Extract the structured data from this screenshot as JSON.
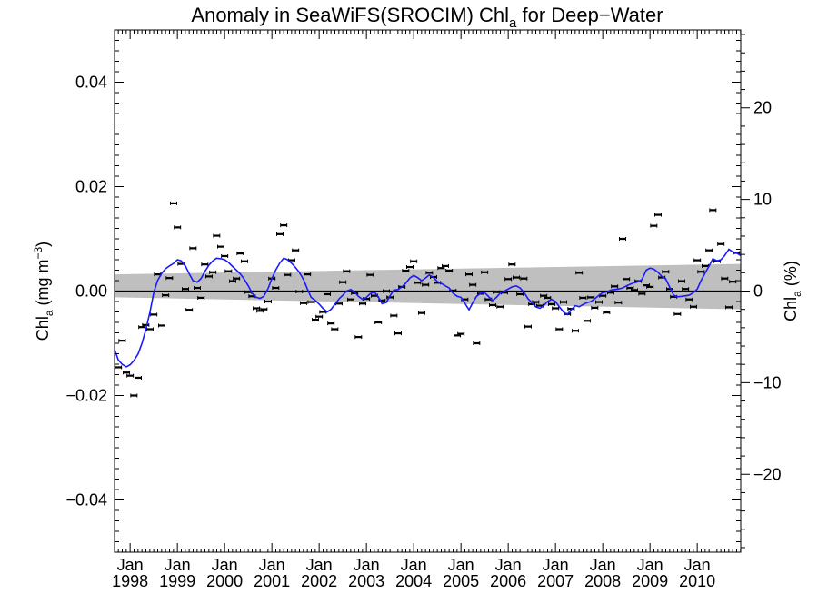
{
  "chart_data": {
    "type": "scatter",
    "title": "Anomaly in SeaWiFS(SROCIM) Chl",
    "title_sub": "a",
    "title_suffix": " for Deep−Water",
    "ylabel": {
      "main": "Chl",
      "sub": "a",
      "units": " (mg m",
      "sup": "−3",
      "close": ")"
    },
    "y2label": {
      "main": "Chl",
      "sub": "a",
      "units": " (%)"
    },
    "ylim": [
      -0.05,
      0.05
    ],
    "y2lim": [
      -28.5,
      28.5
    ],
    "xlim": [
      1997.67,
      2010.92
    ],
    "yticks": [
      {
        "value": 0.04,
        "label": "0.04"
      },
      {
        "value": 0.02,
        "label": "0.02"
      },
      {
        "value": 0.0,
        "label": "0.00"
      },
      {
        "value": -0.02,
        "label": "−0.02"
      },
      {
        "value": -0.04,
        "label": "−0.04"
      }
    ],
    "y2ticks": [
      {
        "value": 20,
        "label": "20"
      },
      {
        "value": 10,
        "label": "10"
      },
      {
        "value": 0,
        "label": "0"
      },
      {
        "value": -10,
        "label": "−10"
      },
      {
        "value": -20,
        "label": "−20"
      }
    ],
    "xticks": [
      {
        "value": 1998,
        "month": "Jan",
        "year": "1998"
      },
      {
        "value": 1999,
        "month": "Jan",
        "year": "1999"
      },
      {
        "value": 2000,
        "month": "Jan",
        "year": "2000"
      },
      {
        "value": 2001,
        "month": "Jan",
        "year": "2001"
      },
      {
        "value": 2002,
        "month": "Jan",
        "year": "2002"
      },
      {
        "value": 2003,
        "month": "Jan",
        "year": "2003"
      },
      {
        "value": 2004,
        "month": "Jan",
        "year": "2004"
      },
      {
        "value": 2005,
        "month": "Jan",
        "year": "2005"
      },
      {
        "value": 2006,
        "month": "Jan",
        "year": "2006"
      },
      {
        "value": 2007,
        "month": "Jan",
        "year": "2007"
      },
      {
        "value": 2008,
        "month": "Jan",
        "year": "2008"
      },
      {
        "value": 2009,
        "month": "Jan",
        "year": "2009"
      },
      {
        "value": 2010,
        "month": "Jan",
        "year": "2010"
      }
    ],
    "series_points": [
      [
        1997.75,
        -0.0146
      ],
      [
        1997.83,
        -0.0095
      ],
      [
        1997.92,
        -0.0156
      ],
      [
        1998.0,
        -0.0162
      ],
      [
        1998.08,
        -0.02
      ],
      [
        1998.17,
        -0.0166
      ],
      [
        1998.25,
        -0.0069
      ],
      [
        1998.33,
        -0.0065
      ],
      [
        1998.42,
        -0.0073
      ],
      [
        1998.5,
        -0.0045
      ],
      [
        1998.58,
        0.0032
      ],
      [
        1998.67,
        -0.0066
      ],
      [
        1998.75,
        -0.0008
      ],
      [
        1998.83,
        0.0025
      ],
      [
        1998.92,
        0.0168
      ],
      [
        1999.0,
        0.0122
      ],
      [
        1999.08,
        0.0052
      ],
      [
        1999.17,
        0.0004
      ],
      [
        1999.25,
        -0.0036
      ],
      [
        1999.33,
        0.0082
      ],
      [
        1999.42,
        0.0006
      ],
      [
        1999.5,
        -0.0013
      ],
      [
        1999.58,
        0.0051
      ],
      [
        1999.67,
        0.0028
      ],
      [
        1999.75,
        0.0036
      ],
      [
        1999.83,
        0.0106
      ],
      [
        1999.92,
        0.0085
      ],
      [
        2000.0,
        0.0067
      ],
      [
        2000.08,
        0.0038
      ],
      [
        2000.17,
        0.0019
      ],
      [
        2000.25,
        0.0024
      ],
      [
        2000.33,
        0.0072
      ],
      [
        2000.42,
        0.0057
      ],
      [
        2000.5,
        -0.0002
      ],
      [
        2000.58,
        -0.001
      ],
      [
        2000.67,
        -0.0033
      ],
      [
        2000.75,
        -0.0038
      ],
      [
        2000.83,
        -0.0035
      ],
      [
        2000.92,
        -0.002
      ],
      [
        2001.0,
        0.0024
      ],
      [
        2001.08,
        0.0006
      ],
      [
        2001.17,
        0.0109
      ],
      [
        2001.25,
        0.0126
      ],
      [
        2001.33,
        0.0031
      ],
      [
        2001.42,
        0.0059
      ],
      [
        2001.5,
        0.0078
      ],
      [
        2001.58,
        -0.0001
      ],
      [
        2001.67,
        -0.0023
      ],
      [
        2001.75,
        0.0032
      ],
      [
        2001.83,
        -0.0021
      ],
      [
        2001.92,
        -0.0055
      ],
      [
        2002.0,
        -0.0049
      ],
      [
        2002.08,
        -0.004
      ],
      [
        2002.17,
        -0.0006
      ],
      [
        2002.25,
        -0.0062
      ],
      [
        2002.33,
        -0.0073
      ],
      [
        2002.42,
        -0.0024
      ],
      [
        2002.5,
        0.0017
      ],
      [
        2002.58,
        0.0038
      ],
      [
        2002.67,
        -0.0016
      ],
      [
        2002.75,
        -0.0004
      ],
      [
        2002.83,
        -0.0088
      ],
      [
        2002.92,
        -0.0024
      ],
      [
        2003.0,
        -0.0015
      ],
      [
        2003.08,
        0.0031
      ],
      [
        2003.17,
        -0.0009
      ],
      [
        2003.25,
        -0.006
      ],
      [
        2003.33,
        -0.0018
      ],
      [
        2003.42,
        0.0
      ],
      [
        2003.5,
        -0.0012
      ],
      [
        2003.58,
        -0.0047
      ],
      [
        2003.67,
        -0.0081
      ],
      [
        2003.75,
        0.0008
      ],
      [
        2003.83,
        0.0039
      ],
      [
        2003.92,
        0.0046
      ],
      [
        2004.0,
        0.0057
      ],
      [
        2004.08,
        0.0016
      ],
      [
        2004.17,
        -0.0042
      ],
      [
        2004.25,
        0.0012
      ],
      [
        2004.33,
        0.0035
      ],
      [
        2004.42,
        0.0027
      ],
      [
        2004.5,
        0.0016
      ],
      [
        2004.58,
        0.0044
      ],
      [
        2004.67,
        0.0048
      ],
      [
        2004.75,
        0.0039
      ],
      [
        2004.83,
        0.0001
      ],
      [
        2004.92,
        -0.0085
      ],
      [
        2005.0,
        -0.0082
      ],
      [
        2005.08,
        -0.0016
      ],
      [
        2005.17,
        0.0032
      ],
      [
        2005.25,
        0.0012
      ],
      [
        2005.33,
        -0.01
      ],
      [
        2005.42,
        -0.0005
      ],
      [
        2005.5,
        0.0036
      ],
      [
        2005.58,
        -0.0016
      ],
      [
        2005.67,
        -0.0027
      ],
      [
        2005.75,
        -0.0002
      ],
      [
        2005.83,
        -0.003
      ],
      [
        2005.92,
        -0.0003
      ],
      [
        2006.0,
        0.0023
      ],
      [
        2006.08,
        0.0051
      ],
      [
        2006.17,
        0.0026
      ],
      [
        2006.25,
        -0.0006
      ],
      [
        2006.33,
        0.0024
      ],
      [
        2006.42,
        -0.0068
      ],
      [
        2006.5,
        -0.0025
      ],
      [
        2006.58,
        -0.0021
      ],
      [
        2006.67,
        -0.0028
      ],
      [
        2006.75,
        -0.0009
      ],
      [
        2006.83,
        -0.0013
      ],
      [
        2006.92,
        -0.0025
      ],
      [
        2007.0,
        -0.0033
      ],
      [
        2007.08,
        -0.0073
      ],
      [
        2007.17,
        -0.0021
      ],
      [
        2007.25,
        -0.0044
      ],
      [
        2007.33,
        -0.0034
      ],
      [
        2007.42,
        -0.0076
      ],
      [
        2007.5,
        0.0035
      ],
      [
        2007.58,
        -0.0013
      ],
      [
        2007.67,
        -0.0057
      ],
      [
        2007.75,
        -0.0012
      ],
      [
        2007.83,
        -0.0032
      ],
      [
        2007.92,
        -0.0021
      ],
      [
        2008.0,
        -0.0009
      ],
      [
        2008.08,
        -0.0041
      ],
      [
        2008.17,
        -0.0003
      ],
      [
        2008.25,
        0.0009
      ],
      [
        2008.33,
        -0.0022
      ],
      [
        2008.42,
        0.01
      ],
      [
        2008.5,
        0.0023
      ],
      [
        2008.58,
        0.0006
      ],
      [
        2008.67,
        0.0002
      ],
      [
        2008.75,
        0.0019
      ],
      [
        2008.83,
        -0.0005
      ],
      [
        2008.92,
        0.0011
      ],
      [
        2009.0,
        0.0008
      ],
      [
        2009.08,
        0.0125
      ],
      [
        2009.17,
        0.0146
      ],
      [
        2009.25,
        0.0026
      ],
      [
        2009.33,
        0.0037
      ],
      [
        2009.42,
        0.0004
      ],
      [
        2009.5,
        -0.0011
      ],
      [
        2009.58,
        -0.0044
      ],
      [
        2009.67,
        0.0019
      ],
      [
        2009.75,
        0.0004
      ],
      [
        2009.83,
        -0.0016
      ],
      [
        2009.92,
        -0.003
      ],
      [
        2010.0,
        0.0059
      ],
      [
        2010.08,
        0.0037
      ],
      [
        2010.17,
        0.0048
      ],
      [
        2010.25,
        0.0078
      ],
      [
        2010.33,
        0.0155
      ],
      [
        2010.42,
        0.0057
      ],
      [
        2010.5,
        0.009
      ],
      [
        2010.58,
        0.0024
      ],
      [
        2010.67,
        -0.0031
      ],
      [
        2010.75,
        0.0018
      ],
      [
        2010.83,
        0.0073
      ]
    ],
    "smooth_line": [
      [
        1997.67,
        -0.0112
      ],
      [
        1997.75,
        -0.0132
      ],
      [
        1997.83,
        -0.014
      ],
      [
        1997.92,
        -0.0145
      ],
      [
        1998.0,
        -0.0141
      ],
      [
        1998.08,
        -0.0133
      ],
      [
        1998.17,
        -0.012
      ],
      [
        1998.25,
        -0.01
      ],
      [
        1998.33,
        -0.0075
      ],
      [
        1998.42,
        -0.004
      ],
      [
        1998.5,
        -0.0003
      ],
      [
        1998.58,
        0.002
      ],
      [
        1998.67,
        0.0034
      ],
      [
        1998.75,
        0.0043
      ],
      [
        1998.83,
        0.0048
      ],
      [
        1998.92,
        0.0053
      ],
      [
        1999.0,
        0.006
      ],
      [
        1999.08,
        0.0058
      ],
      [
        1999.17,
        0.0048
      ],
      [
        1999.25,
        0.0033
      ],
      [
        1999.33,
        0.002
      ],
      [
        1999.42,
        0.0017
      ],
      [
        1999.5,
        0.0024
      ],
      [
        1999.58,
        0.0037
      ],
      [
        1999.67,
        0.005
      ],
      [
        1999.75,
        0.0058
      ],
      [
        1999.83,
        0.0063
      ],
      [
        1999.92,
        0.0062
      ],
      [
        2000.0,
        0.006
      ],
      [
        2000.08,
        0.0055
      ],
      [
        2000.17,
        0.0047
      ],
      [
        2000.25,
        0.004
      ],
      [
        2000.33,
        0.0033
      ],
      [
        2000.42,
        0.0022
      ],
      [
        2000.5,
        0.001
      ],
      [
        2000.58,
        -0.0004
      ],
      [
        2000.67,
        -0.0012
      ],
      [
        2000.75,
        -0.0014
      ],
      [
        2000.83,
        -0.001
      ],
      [
        2000.92,
        0.0005
      ],
      [
        2001.0,
        0.0024
      ],
      [
        2001.08,
        0.004
      ],
      [
        2001.17,
        0.0054
      ],
      [
        2001.25,
        0.0063
      ],
      [
        2001.33,
        0.006
      ],
      [
        2001.42,
        0.0053
      ],
      [
        2001.5,
        0.0045
      ],
      [
        2001.58,
        0.0036
      ],
      [
        2001.67,
        0.0022
      ],
      [
        2001.75,
        0.0004
      ],
      [
        2001.83,
        -0.0012
      ],
      [
        2001.92,
        -0.0018
      ],
      [
        2002.0,
        -0.0025
      ],
      [
        2002.08,
        -0.0033
      ],
      [
        2002.17,
        -0.004
      ],
      [
        2002.25,
        -0.0035
      ],
      [
        2002.33,
        -0.0026
      ],
      [
        2002.42,
        -0.0015
      ],
      [
        2002.5,
        -0.0008
      ],
      [
        2002.58,
        0.0
      ],
      [
        2002.67,
        0.0003
      ],
      [
        2002.75,
        -0.0002
      ],
      [
        2002.83,
        -0.001
      ],
      [
        2002.92,
        -0.0016
      ],
      [
        2003.0,
        -0.0012
      ],
      [
        2003.08,
        -0.0005
      ],
      [
        2003.17,
        -0.0002
      ],
      [
        2003.25,
        -0.0011
      ],
      [
        2003.33,
        -0.0024
      ],
      [
        2003.42,
        -0.0022
      ],
      [
        2003.5,
        -0.0009
      ],
      [
        2003.58,
        0.0002
      ],
      [
        2003.67,
        0.0003
      ],
      [
        2003.75,
        0.0008
      ],
      [
        2003.83,
        0.0015
      ],
      [
        2003.92,
        0.0025
      ],
      [
        2004.0,
        0.003
      ],
      [
        2004.08,
        0.0026
      ],
      [
        2004.17,
        0.002
      ],
      [
        2004.25,
        0.0025
      ],
      [
        2004.33,
        0.0031
      ],
      [
        2004.42,
        0.0026
      ],
      [
        2004.5,
        0.0018
      ],
      [
        2004.58,
        0.0015
      ],
      [
        2004.67,
        0.001
      ],
      [
        2004.75,
        0.0006
      ],
      [
        2004.83,
        -0.0004
      ],
      [
        2004.92,
        -0.001
      ],
      [
        2005.0,
        -0.0012
      ],
      [
        2005.08,
        -0.0023
      ],
      [
        2005.17,
        -0.0036
      ],
      [
        2005.25,
        -0.0022
      ],
      [
        2005.33,
        -0.001
      ],
      [
        2005.42,
        -0.0004
      ],
      [
        2005.5,
        -0.0003
      ],
      [
        2005.58,
        -0.001
      ],
      [
        2005.67,
        -0.0018
      ],
      [
        2005.75,
        -0.0012
      ],
      [
        2005.83,
        -0.0004
      ],
      [
        2005.92,
        0.0
      ],
      [
        2006.0,
        0.0004
      ],
      [
        2006.08,
        0.0008
      ],
      [
        2006.17,
        0.001
      ],
      [
        2006.25,
        0.0006
      ],
      [
        2006.33,
        -0.0002
      ],
      [
        2006.42,
        -0.0015
      ],
      [
        2006.5,
        -0.0022
      ],
      [
        2006.58,
        -0.003
      ],
      [
        2006.67,
        -0.0033
      ],
      [
        2006.75,
        -0.0028
      ],
      [
        2006.83,
        -0.002
      ],
      [
        2006.92,
        -0.0016
      ],
      [
        2007.0,
        -0.002
      ],
      [
        2007.08,
        -0.003
      ],
      [
        2007.17,
        -0.004
      ],
      [
        2007.25,
        -0.0045
      ],
      [
        2007.33,
        -0.0036
      ],
      [
        2007.42,
        -0.0028
      ],
      [
        2007.5,
        -0.003
      ],
      [
        2007.58,
        -0.0026
      ],
      [
        2007.67,
        -0.0022
      ],
      [
        2007.75,
        -0.002
      ],
      [
        2007.83,
        -0.0015
      ],
      [
        2007.92,
        -0.0008
      ],
      [
        2008.0,
        -0.0003
      ],
      [
        2008.08,
        -0.0002
      ],
      [
        2008.17,
        0.0002
      ],
      [
        2008.25,
        0.0003
      ],
      [
        2008.33,
        0.0004
      ],
      [
        2008.42,
        0.0006
      ],
      [
        2008.5,
        0.001
      ],
      [
        2008.58,
        0.0013
      ],
      [
        2008.67,
        0.0016
      ],
      [
        2008.75,
        0.0018
      ],
      [
        2008.83,
        0.0022
      ],
      [
        2008.92,
        0.004
      ],
      [
        2009.0,
        0.0044
      ],
      [
        2009.08,
        0.0042
      ],
      [
        2009.17,
        0.0036
      ],
      [
        2009.25,
        0.0028
      ],
      [
        2009.33,
        0.0024
      ],
      [
        2009.42,
        0.0007
      ],
      [
        2009.5,
        -0.0008
      ],
      [
        2009.58,
        -0.0011
      ],
      [
        2009.67,
        -0.001
      ],
      [
        2009.75,
        -0.0009
      ],
      [
        2009.83,
        -0.0008
      ],
      [
        2009.92,
        -0.0003
      ],
      [
        2010.0,
        0.0004
      ],
      [
        2010.08,
        0.002
      ],
      [
        2010.17,
        0.0035
      ],
      [
        2010.25,
        0.0048
      ],
      [
        2010.33,
        0.0062
      ],
      [
        2010.42,
        0.0058
      ],
      [
        2010.5,
        0.006
      ],
      [
        2010.58,
        0.0068
      ],
      [
        2010.67,
        0.008
      ],
      [
        2010.75,
        0.0075
      ],
      [
        2010.83,
        0.0073
      ],
      [
        2010.92,
        0.0068
      ]
    ],
    "trend_band": {
      "start": {
        "x": 1997.67,
        "upper": 0.0032,
        "lower": -0.0012
      },
      "end": {
        "x": 2010.92,
        "upper": 0.0052,
        "lower": -0.0035
      }
    },
    "colors": {
      "line": "#1a1aff",
      "band": "#bfbfbf",
      "points": "#000000",
      "zero_line": "#000000"
    },
    "grid": false,
    "legend": "none"
  }
}
